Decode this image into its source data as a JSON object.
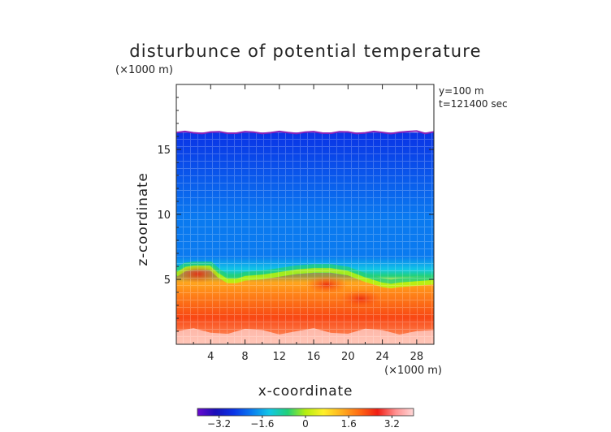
{
  "chart_data": {
    "type": "heatmap",
    "title": "disturbunce of potential temperature",
    "scale_note": "(×1000 m)",
    "info_lines": [
      "y=100 m",
      "t=121400 sec"
    ],
    "xlabel": "x-coordinate",
    "ylabel": "z-coordinate",
    "x_unit_note": "(×1000 m)",
    "xlim": [
      0,
      30
    ],
    "ylim": [
      0,
      20
    ],
    "x_ticks": [
      "4",
      "8",
      "12",
      "16",
      "20",
      "24",
      "28"
    ],
    "x_tick_values": [
      4,
      8,
      12,
      16,
      20,
      24,
      28
    ],
    "y_ticks": [
      "5",
      "10",
      "15"
    ],
    "y_tick_values": [
      5,
      10,
      15
    ],
    "data_top_z": 16.3,
    "colorbar": {
      "range": [
        -4,
        4
      ],
      "ticks": [
        "−3.2",
        "−1.6",
        "0",
        "1.6",
        "3.2"
      ],
      "tick_values": [
        -3.2,
        -1.6,
        0,
        1.6,
        3.2
      ],
      "colors": [
        "#6a0ad0",
        "#1a0fb8",
        "#0a33e6",
        "#0a7af0",
        "#12c7e6",
        "#22d07a",
        "#b4ee10",
        "#fff02a",
        "#ffb020",
        "#ff6a14",
        "#f01e14",
        "#ff9090",
        "#ffd8d8"
      ]
    },
    "interface_profile": {
      "x": [
        0,
        1,
        2,
        3,
        4,
        5,
        6,
        7,
        8,
        10,
        12,
        14,
        16,
        18,
        20,
        22,
        24,
        25,
        26,
        28,
        30
      ],
      "z": [
        5.4,
        5.8,
        5.9,
        5.9,
        5.9,
        5.3,
        4.9,
        4.9,
        5.1,
        5.2,
        5.4,
        5.6,
        5.7,
        5.7,
        5.5,
        5.0,
        4.6,
        4.5,
        4.6,
        4.7,
        4.8
      ]
    },
    "warm_cores": [
      {
        "x": 2.5,
        "z": 5.4,
        "value": 3.2
      },
      {
        "x": 17.5,
        "z": 4.6,
        "value": 3.4
      },
      {
        "x": 21.5,
        "z": 3.5,
        "value": 3.0
      }
    ],
    "surface_value": 4.0,
    "upper_value": -3.0
  }
}
